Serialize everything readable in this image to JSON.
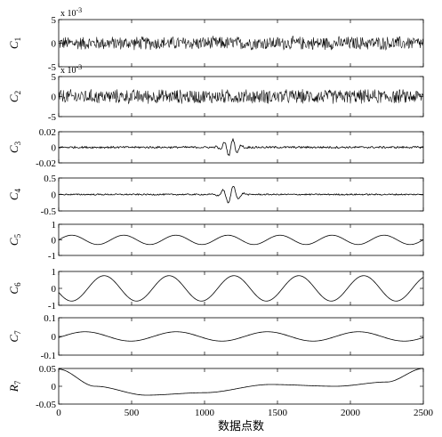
{
  "chart_data": {
    "type": "line",
    "xlabel": "数据点数",
    "xlim": [
      0,
      2500
    ],
    "xticks": [
      0,
      500,
      1000,
      1500,
      2000,
      2500
    ],
    "xtick_labels": [
      "0",
      "500",
      "1000",
      "1500",
      "2000",
      "2500"
    ],
    "panels": [
      {
        "name": "C",
        "sub": "1",
        "multiplier": "x 10",
        "multiplier_exp": "-3",
        "ylim": [
          -5,
          5
        ],
        "yticks": [
          -5,
          0,
          5
        ],
        "ytick_labels": [
          "-5",
          "0",
          "5"
        ],
        "signal": "noise",
        "amplitude": 1.6
      },
      {
        "name": "C",
        "sub": "2",
        "multiplier": "x 10",
        "multiplier_exp": "-3",
        "ylim": [
          -5,
          5
        ],
        "yticks": [
          -5,
          0,
          5
        ],
        "ytick_labels": [
          "-5",
          "0",
          "5"
        ],
        "signal": "noise",
        "amplitude": 2.0
      },
      {
        "name": "C",
        "sub": "3",
        "ylim": [
          -0.02,
          0.02
        ],
        "yticks": [
          -0.02,
          0,
          0.02
        ],
        "ytick_labels": [
          "-0.02",
          "0",
          "0.02"
        ],
        "signal": "burst",
        "burst_center": 1180,
        "burst_amplitude": 0.011,
        "burst_period": 60,
        "noise_amplitude": 0.0012
      },
      {
        "name": "C",
        "sub": "4",
        "ylim": [
          -0.5,
          0.5
        ],
        "yticks": [
          -0.5,
          0,
          0.5
        ],
        "ytick_labels": [
          "-0.5",
          "0",
          "0.5"
        ],
        "signal": "burst",
        "burst_center": 1180,
        "burst_amplitude": 0.28,
        "burst_period": 75,
        "noise_amplitude": 0.02
      },
      {
        "name": "C",
        "sub": "5",
        "ylim": [
          -1,
          1
        ],
        "yticks": [
          -1,
          0,
          1
        ],
        "ytick_labels": [
          "-1",
          "0",
          "1"
        ],
        "signal": "sine",
        "amplitude": 0.3,
        "period": 357,
        "phase_x": 0
      },
      {
        "name": "C",
        "sub": "6",
        "ylim": [
          -1,
          1
        ],
        "yticks": [
          -1,
          0,
          1
        ],
        "ytick_labels": [
          "-1",
          "0",
          "1"
        ],
        "signal": "sine",
        "amplitude": 0.75,
        "period": 445,
        "phase_x": 200
      },
      {
        "name": "C",
        "sub": "7",
        "ylim": [
          -0.1,
          0.1
        ],
        "yticks": [
          -0.1,
          0,
          0.1
        ],
        "ytick_labels": [
          "-0.1",
          "0",
          "0.1"
        ],
        "signal": "sine",
        "amplitude": 0.025,
        "period": 625,
        "phase_x": 650
      },
      {
        "name": "R",
        "sub": "7",
        "ylim": [
          -0.05,
          0.05
        ],
        "yticks": [
          -0.05,
          0,
          0.05
        ],
        "ytick_labels": [
          "-0.05",
          "0",
          "0.05"
        ],
        "signal": "trend",
        "points": [
          [
            0,
            0.048
          ],
          [
            250,
            0.0
          ],
          [
            600,
            -0.025
          ],
          [
            1000,
            -0.018
          ],
          [
            1450,
            0.005
          ],
          [
            1900,
            0.0
          ],
          [
            2250,
            0.012
          ],
          [
            2500,
            0.05
          ]
        ]
      }
    ]
  }
}
